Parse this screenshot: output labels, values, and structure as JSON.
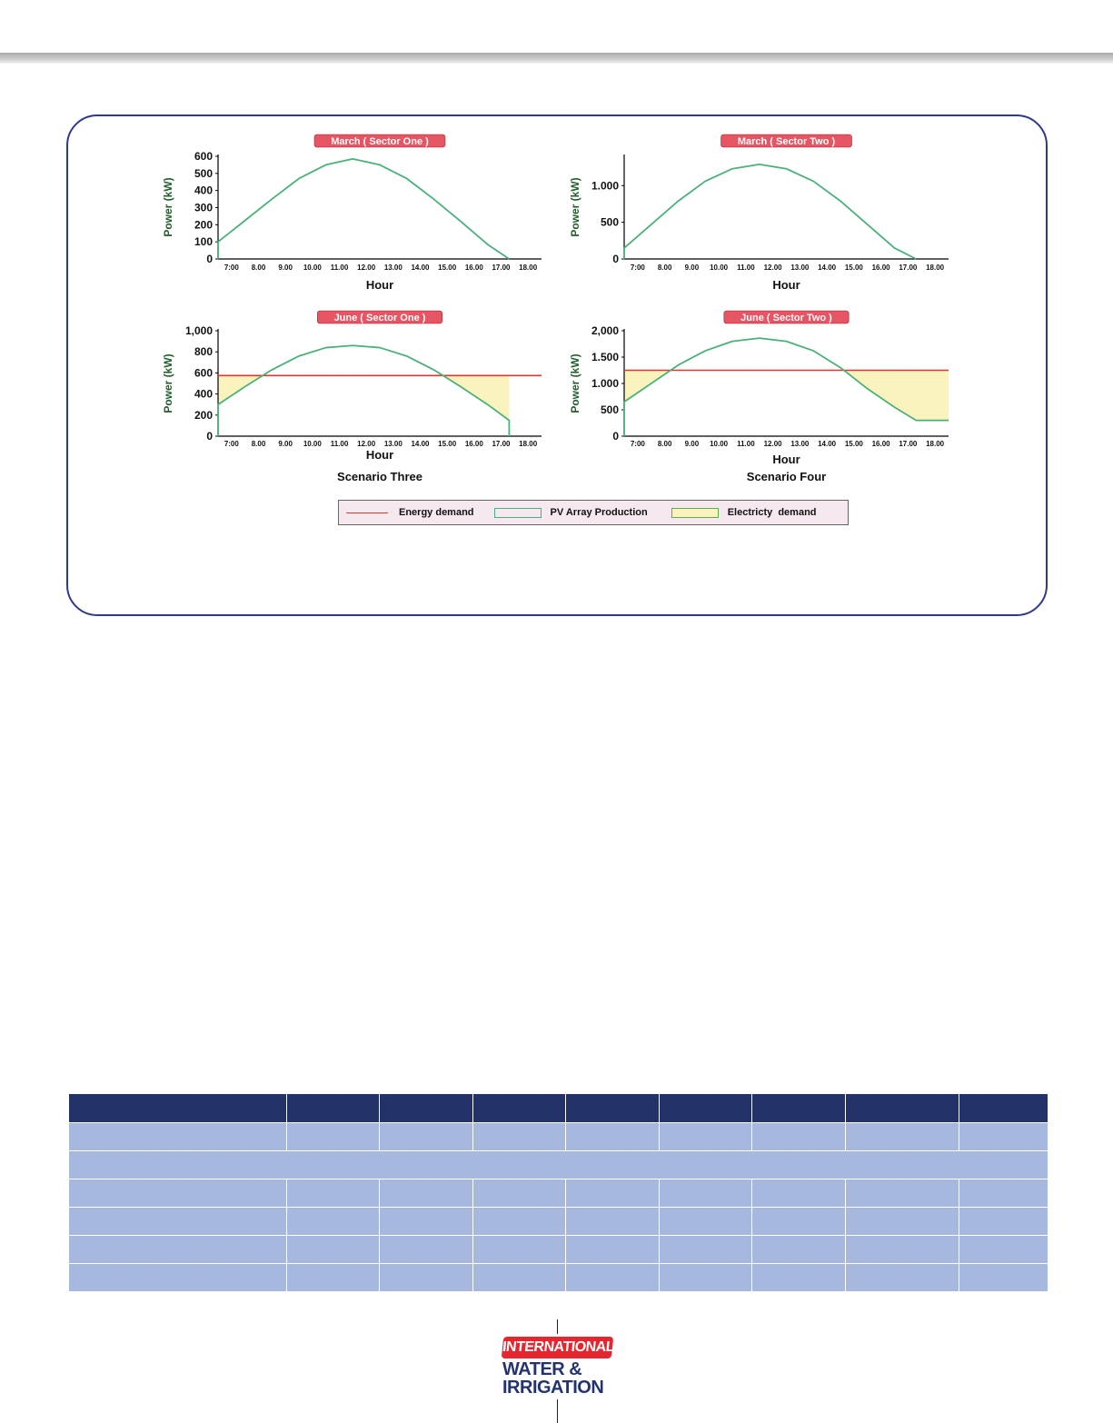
{
  "chart_data": [
    {
      "type": "line",
      "title": "March ( Sector One )",
      "xlabel": "Hour",
      "ylabel": "Power (kW)",
      "ylim": [
        0,
        600
      ],
      "y_ticks": [
        0,
        100,
        200,
        300,
        400,
        500,
        600
      ],
      "y_tick_labels": [
        "0",
        "100",
        "200",
        "300",
        "400",
        "500",
        "600"
      ],
      "x_ticks": [
        7,
        8,
        9,
        10,
        11,
        12,
        13,
        14,
        15,
        16,
        17,
        18
      ],
      "x_tick_labels": [
        "7:00",
        "8.00",
        "9.00",
        "10.00",
        "11.00",
        "12.00",
        "13.00",
        "14.00",
        "15.00",
        "16.00",
        "17.00",
        "18.00"
      ],
      "series": [
        {
          "name": "PV Array Production",
          "x": [
            6.5,
            7.5,
            8.5,
            9.5,
            10.5,
            11.5,
            12.5,
            13.5,
            14.5,
            15.5,
            16.5,
            17.3
          ],
          "values": [
            100,
            225,
            350,
            470,
            550,
            585,
            550,
            470,
            350,
            220,
            85,
            0
          ]
        }
      ]
    },
    {
      "type": "line",
      "title": "March ( Sector Two )",
      "xlabel": "Hour",
      "ylabel": "Power (kW)",
      "ylim": [
        0,
        1400
      ],
      "y_ticks": [
        0,
        500,
        1000
      ],
      "y_tick_labels": [
        "0",
        "500",
        "1.000"
      ],
      "x_ticks": [
        7,
        8,
        9,
        10,
        11,
        12,
        13,
        14,
        15,
        16,
        17,
        18
      ],
      "x_tick_labels": [
        "7:00",
        "8.00",
        "9.00",
        "10.00",
        "11.00",
        "12.00",
        "13.00",
        "14.00",
        "15.00",
        "16.00",
        "17.00",
        "18.00"
      ],
      "series": [
        {
          "name": "PV Array Production",
          "x": [
            6.5,
            7.5,
            8.5,
            9.5,
            10.5,
            11.5,
            12.5,
            13.5,
            14.5,
            15.5,
            16.5,
            17.3
          ],
          "values": [
            150,
            470,
            790,
            1060,
            1230,
            1290,
            1230,
            1060,
            790,
            470,
            150,
            0
          ]
        }
      ]
    },
    {
      "type": "area",
      "title": "June ( Sector One )",
      "subtitle": "Scenario Three",
      "xlabel": "Hour",
      "ylabel": "Power (kW)",
      "ylim": [
        0,
        1000
      ],
      "y_ticks": [
        0,
        200,
        400,
        600,
        800,
        1000
      ],
      "y_tick_labels": [
        "0",
        "200",
        "400",
        "600",
        "800",
        "1,000"
      ],
      "x_ticks": [
        7,
        8,
        9,
        10,
        11,
        12,
        13,
        14,
        15,
        16,
        17,
        18
      ],
      "x_tick_labels": [
        "7:00",
        "8.00",
        "9.00",
        "10.00",
        "11.00",
        "12.00",
        "13.00",
        "14.00",
        "15.00",
        "16.00",
        "17.00",
        "18.00"
      ],
      "series": [
        {
          "name": "PV Array Production",
          "x": [
            6.5,
            7.5,
            8.5,
            9.5,
            10.5,
            11.5,
            12.5,
            13.5,
            14.5,
            15.5,
            16.5,
            17.3,
            17.3
          ],
          "values": [
            300,
            470,
            630,
            760,
            840,
            860,
            840,
            760,
            630,
            470,
            300,
            150,
            0
          ]
        },
        {
          "name": "Energy demand",
          "x": [
            6.5,
            18.5
          ],
          "values": [
            575,
            575
          ]
        }
      ]
    },
    {
      "type": "area",
      "title": "June ( Sector Two )",
      "subtitle": "Scenario Four",
      "xlabel": "Hour",
      "ylabel": "Power (kW)",
      "ylim": [
        0,
        2000
      ],
      "y_ticks": [
        0,
        500,
        1000,
        1500,
        2000
      ],
      "y_tick_labels": [
        "0",
        "500",
        "1.000",
        "1.500",
        "2,000"
      ],
      "x_ticks": [
        7,
        8,
        9,
        10,
        11,
        12,
        13,
        14,
        15,
        16,
        17,
        18
      ],
      "x_tick_labels": [
        "7:00",
        "8.00",
        "9.00",
        "10.00",
        "11.00",
        "12.00",
        "13.00",
        "14.00",
        "15.00",
        "16.00",
        "17.00",
        "18.00"
      ],
      "series": [
        {
          "name": "PV Array Production",
          "x": [
            6.5,
            7.5,
            8.5,
            9.5,
            10.5,
            11.5,
            12.5,
            13.5,
            14.5,
            15.5,
            16.5,
            17.3,
            18.5
          ],
          "values": [
            650,
            1000,
            1350,
            1620,
            1800,
            1860,
            1800,
            1620,
            1300,
            900,
            550,
            300,
            300
          ]
        },
        {
          "name": "Energy demand",
          "x": [
            6.5,
            18.5
          ],
          "values": [
            1250,
            1250
          ]
        }
      ]
    }
  ],
  "legend": {
    "energy_demand": "Energy demand",
    "pv_production": "PV Array Production",
    "electricity_demand": "Electricty  demand"
  },
  "colors": {
    "pv_line": "#4bb07a",
    "demand_line": "#e3342f",
    "deficit_fill": "#fbf3bd",
    "title_badge": "#e55563",
    "frame": "#2d3a8c",
    "table_header": "#233268",
    "table_body": "#a7b8de"
  },
  "logo": {
    "line1": "INTERNATIONAL",
    "line2": "WATER &",
    "line3": "IRRIGATION"
  }
}
